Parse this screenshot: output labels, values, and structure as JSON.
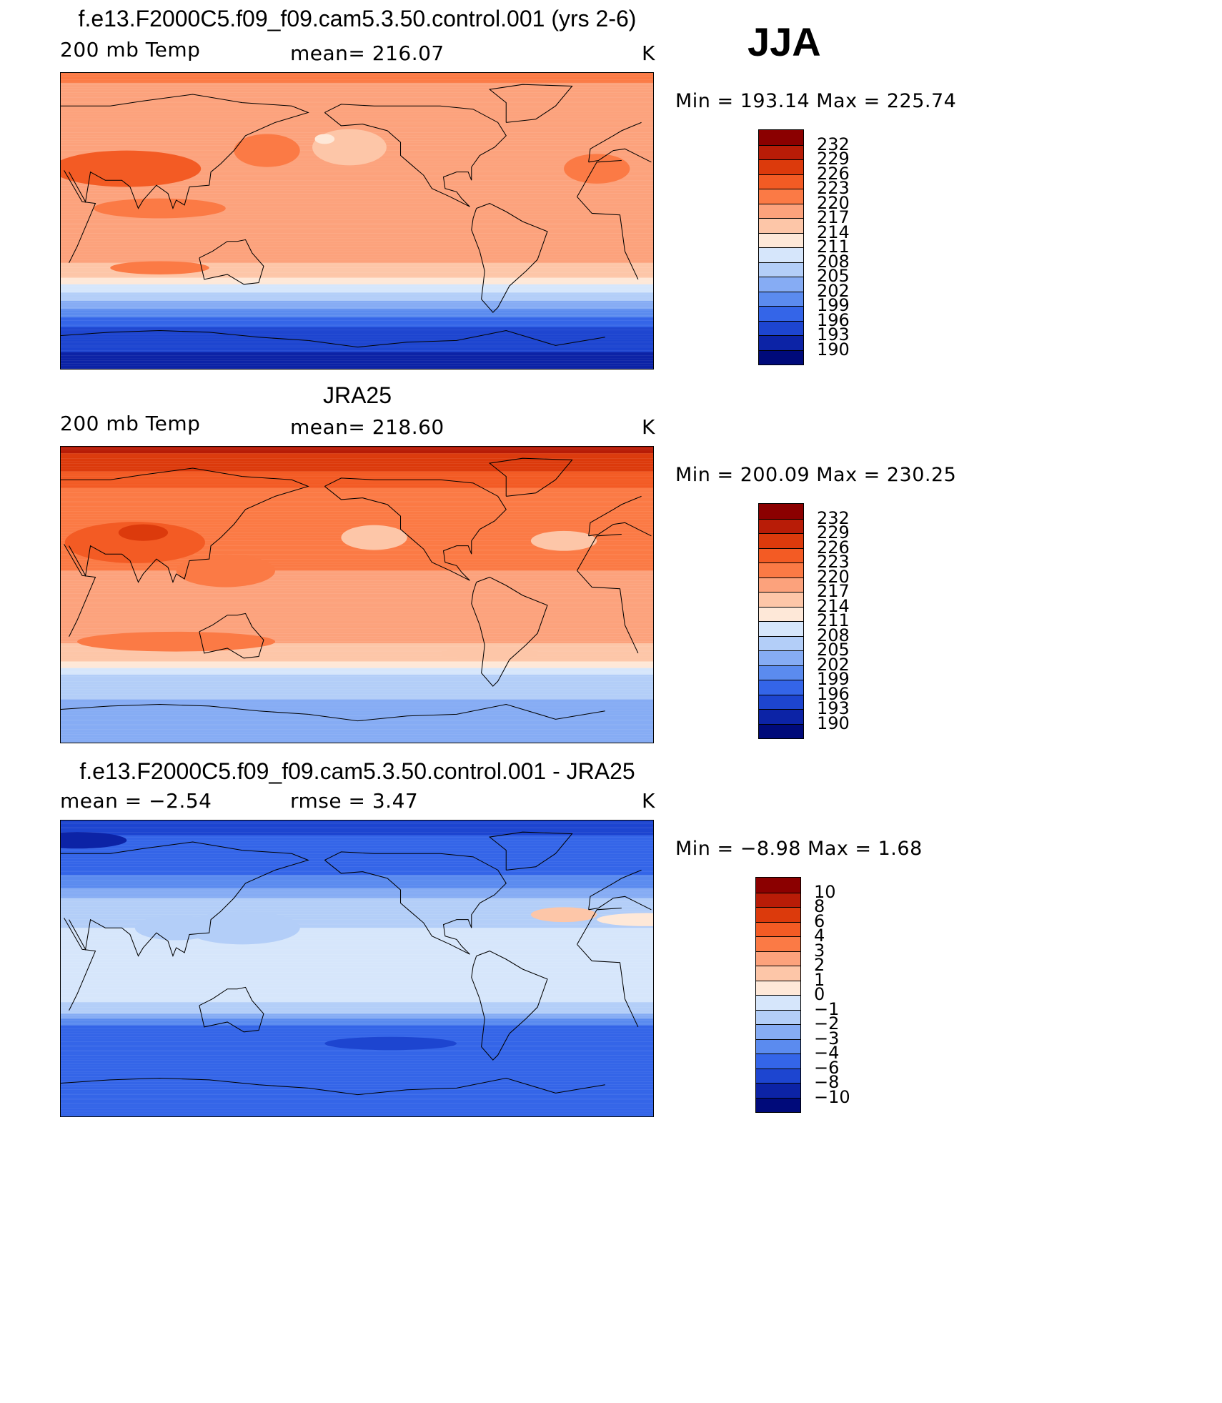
{
  "season": "JJA",
  "chart_data": [
    {
      "type": "heatmap",
      "title": "f.e13.F2000C5.f09_f09.cam5.3.50.control.001 (yrs 2-6)",
      "left_label": "200 mb Temp",
      "center_label": "mean= 216.07",
      "units": "K",
      "stats": "Min = 193.14 Max = 225.74",
      "colorbar": {
        "levels": [
          "232",
          "229",
          "226",
          "223",
          "220",
          "217",
          "214",
          "211",
          "208",
          "205",
          "202",
          "199",
          "196",
          "193",
          "190"
        ],
        "colors": [
          "#8b0000",
          "#b81c07",
          "#dc3a0c",
          "#f35b24",
          "#fb7a45",
          "#fca27c",
          "#fdc6a8",
          "#fee8d8",
          "#d6e6fb",
          "#b3cef8",
          "#86acf4",
          "#5b8bef",
          "#3465e8",
          "#1d45d0",
          "#0c23a6",
          "#000a7a"
        ]
      },
      "bands": [
        {
          "lat": 90,
          "value": 221
        },
        {
          "lat": 75,
          "value": 218.5
        },
        {
          "lat": 55,
          "value": 218.5
        },
        {
          "lat": 35,
          "value": 219
        },
        {
          "lat": 10,
          "value": 218.5
        },
        {
          "lat": -20,
          "value": 218.5
        },
        {
          "lat": -33,
          "value": 214.5
        },
        {
          "lat": -40,
          "value": 210
        },
        {
          "lat": -48,
          "value": 205
        },
        {
          "lat": -58,
          "value": 199
        },
        {
          "lat": -68,
          "value": 194
        },
        {
          "lat": -90,
          "value": 192
        }
      ],
      "anomalies": [
        {
          "lon": 70,
          "lat": 32,
          "w": 90,
          "h": 22,
          "value": 224.5
        },
        {
          "lon": 155,
          "lat": 43,
          "w": 40,
          "h": 20,
          "value": 222
        },
        {
          "lon": 205,
          "lat": 45,
          "w": 45,
          "h": 22,
          "value": 215.5
        },
        {
          "lon": 190,
          "lat": 50,
          "w": 12,
          "h": 6,
          "value": 212.5
        },
        {
          "lon": 355,
          "lat": 32,
          "w": 40,
          "h": 18,
          "value": 221.5
        },
        {
          "lon": 90,
          "lat": 8,
          "w": 80,
          "h": 12,
          "value": 221.5
        },
        {
          "lon": 90,
          "lat": -28,
          "w": 60,
          "h": 8,
          "value": 221.5
        }
      ]
    },
    {
      "type": "heatmap",
      "title": "JRA25",
      "left_label": "200 mb Temp",
      "center_label": "mean= 218.60",
      "units": "K",
      "stats": "Min = 200.09 Max = 230.25",
      "colorbar": {
        "levels": [
          "232",
          "229",
          "226",
          "223",
          "220",
          "217",
          "214",
          "211",
          "208",
          "205",
          "202",
          "199",
          "196",
          "193",
          "190"
        ],
        "colors": [
          "#8b0000",
          "#b81c07",
          "#dc3a0c",
          "#f35b24",
          "#fb7a45",
          "#fca27c",
          "#fdc6a8",
          "#fee8d8",
          "#d6e6fb",
          "#b3cef8",
          "#86acf4",
          "#5b8bef",
          "#3465e8",
          "#1d45d0",
          "#0c23a6",
          "#000a7a"
        ]
      },
      "bands": [
        {
          "lat": 90,
          "value": 230
        },
        {
          "lat": 80,
          "value": 227.5
        },
        {
          "lat": 70,
          "value": 224.5
        },
        {
          "lat": 60,
          "value": 221.5
        },
        {
          "lat": 45,
          "value": 221.5
        },
        {
          "lat": 25,
          "value": 221
        },
        {
          "lat": 0,
          "value": 218.5
        },
        {
          "lat": -20,
          "value": 218.5
        },
        {
          "lat": -38,
          "value": 215.5
        },
        {
          "lat": -45,
          "value": 210
        },
        {
          "lat": -50,
          "value": 206
        },
        {
          "lat": -60,
          "value": 205.5
        },
        {
          "lat": -75,
          "value": 203
        },
        {
          "lat": -90,
          "value": 202
        }
      ],
      "anomalies": [
        {
          "lon": 75,
          "lat": 32,
          "w": 85,
          "h": 25,
          "value": 225
        },
        {
          "lon": 80,
          "lat": 38,
          "w": 30,
          "h": 10,
          "value": 228
        },
        {
          "lon": 130,
          "lat": 15,
          "w": 60,
          "h": 20,
          "value": 222
        },
        {
          "lon": 100,
          "lat": -28,
          "w": 120,
          "h": 12,
          "value": 222
        },
        {
          "lon": 220,
          "lat": 35,
          "w": 40,
          "h": 15,
          "value": 215.5
        },
        {
          "lon": 335,
          "lat": 33,
          "w": 40,
          "h": 12,
          "value": 215.5
        },
        {
          "lon": 290,
          "lat": -35,
          "w": 60,
          "h": 8,
          "value": 215.5
        }
      ]
    },
    {
      "type": "heatmap",
      "title": "f.e13.F2000C5.f09_f09.cam5.3.50.control.001 - JRA25",
      "left_label": "mean =   −2.54",
      "center_label": "rmse =    3.47",
      "units": "K",
      "stats": "Min =   −8.98 Max =    1.68",
      "colorbar": {
        "levels": [
          "10",
          "8",
          "6",
          "4",
          "3",
          "2",
          "1",
          "0",
          "−1",
          "−2",
          "−3",
          "−4",
          "−6",
          "−8",
          "−10"
        ],
        "colors": [
          "#8b0000",
          "#b81c07",
          "#dc3a0c",
          "#f35b24",
          "#fb7a45",
          "#fca27c",
          "#fdc6a8",
          "#fee8d8",
          "#d6e6fb",
          "#b3cef8",
          "#86acf4",
          "#5b8bef",
          "#3465e8",
          "#1d45d0",
          "#0c23a6",
          "#000a7a"
        ]
      },
      "bands": [
        {
          "lat": 90,
          "value": -7
        },
        {
          "lat": 72,
          "value": -5
        },
        {
          "lat": 62,
          "value": -4.5
        },
        {
          "lat": 52,
          "value": -3.5
        },
        {
          "lat": 40,
          "value": -1.5
        },
        {
          "lat": 25,
          "value": -1
        },
        {
          "lat": 0,
          "value": -0.5
        },
        {
          "lat": -15,
          "value": -0.5
        },
        {
          "lat": -25,
          "value": -1.5
        },
        {
          "lat": -32,
          "value": -3.5
        },
        {
          "lat": -38,
          "value": -5
        },
        {
          "lat": -55,
          "value": -5
        },
        {
          "lat": -65,
          "value": -4.5
        },
        {
          "lat": -90,
          "value": -5
        }
      ],
      "anomalies": [
        {
          "lon": 25,
          "lat": 30,
          "w": 60,
          "h": 8,
          "value": 0.5
        },
        {
          "lon": 335,
          "lat": 33,
          "w": 40,
          "h": 9,
          "value": 1.5
        },
        {
          "lon": 140,
          "lat": 25,
          "w": 70,
          "h": 20,
          "value": -1.5
        },
        {
          "lon": 100,
          "lat": 25,
          "w": 50,
          "h": 15,
          "value": -1.5
        },
        {
          "lon": 230,
          "lat": -45,
          "w": 80,
          "h": 8,
          "value": -7
        },
        {
          "lon": 40,
          "lat": 78,
          "w": 60,
          "h": 10,
          "value": -9
        }
      ]
    }
  ]
}
